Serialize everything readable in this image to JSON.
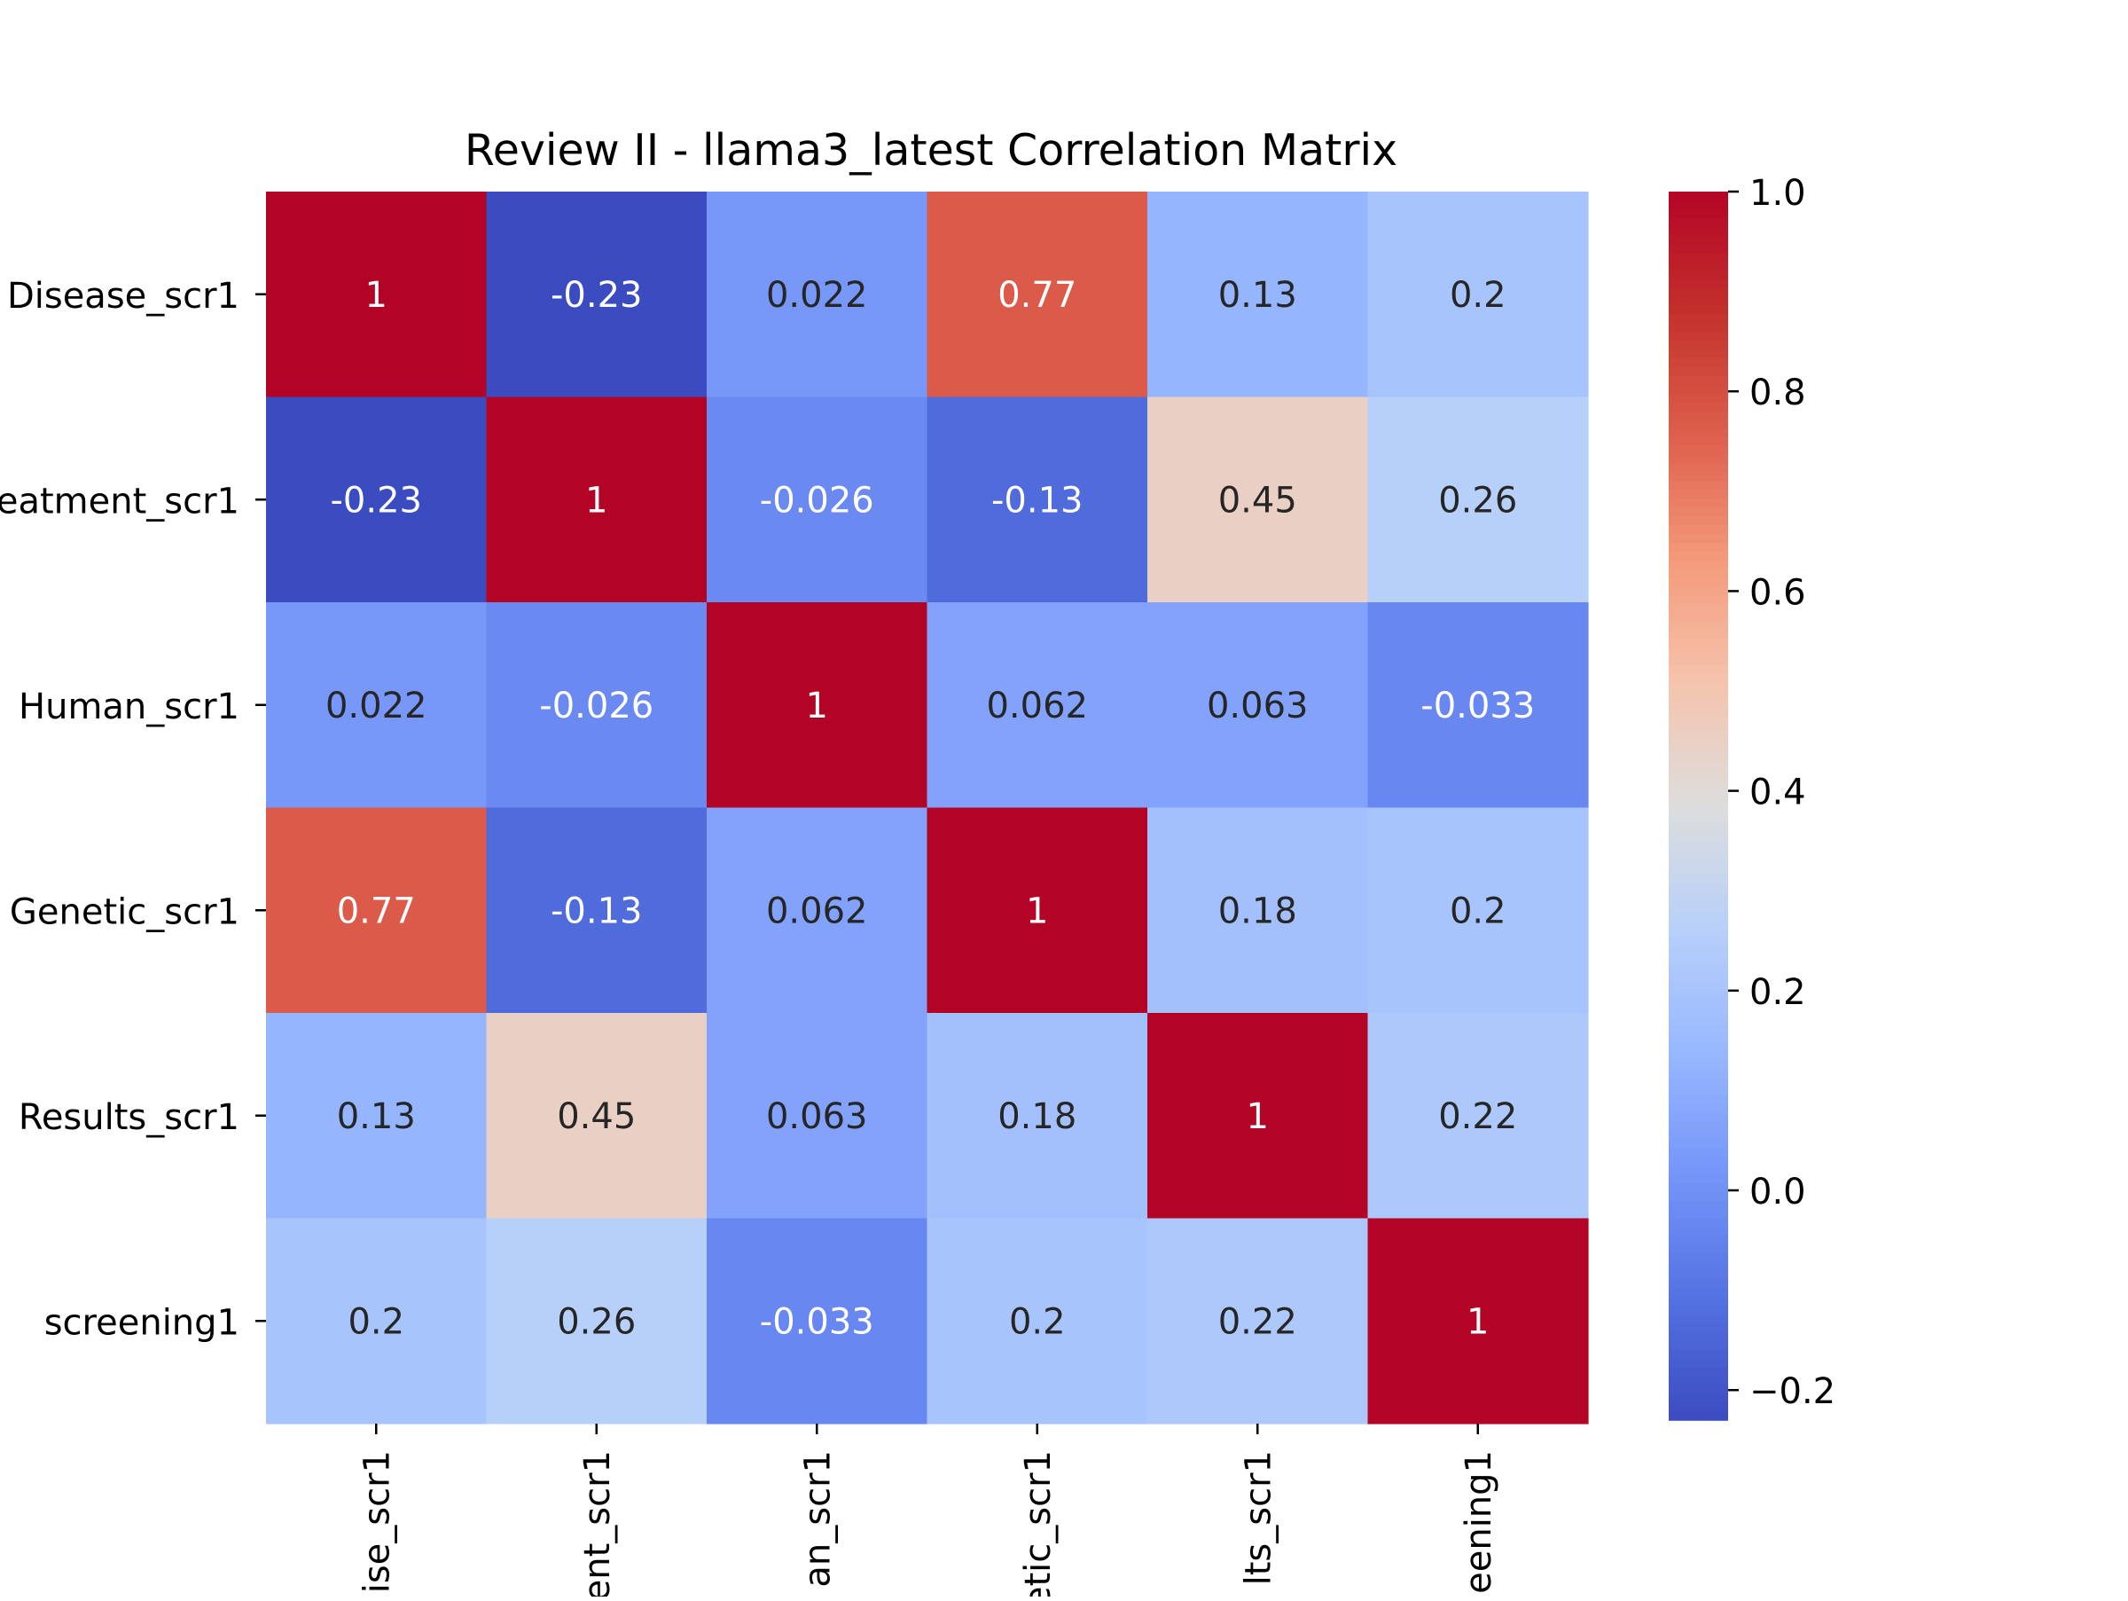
{
  "chart_data": {
    "type": "heatmap",
    "title": "Review II - llama3_latest Correlation Matrix",
    "row_labels": [
      "Disease_scr1",
      "eatment_scr1",
      "Human_scr1",
      "Genetic_scr1",
      "Results_scr1",
      "screening1"
    ],
    "col_labels": [
      "ise_scr1",
      "ent_scr1",
      "an_scr1",
      "etic_scr1",
      "lts_scr1",
      "eening1"
    ],
    "values": [
      [
        1,
        -0.23,
        0.022,
        0.77,
        0.13,
        0.2
      ],
      [
        -0.23,
        1,
        -0.026,
        -0.13,
        0.45,
        0.26
      ],
      [
        0.022,
        -0.026,
        1,
        0.062,
        0.063,
        -0.033
      ],
      [
        0.77,
        -0.13,
        0.062,
        1,
        0.18,
        0.2
      ],
      [
        0.13,
        0.45,
        0.063,
        0.18,
        1,
        0.22
      ],
      [
        0.2,
        0.26,
        -0.033,
        0.2,
        0.22,
        1
      ]
    ],
    "cell_labels": [
      [
        "1",
        "-0.23",
        "0.022",
        "0.77",
        "0.13",
        "0.2"
      ],
      [
        "-0.23",
        "1",
        "-0.026",
        "-0.13",
        "0.45",
        "0.26"
      ],
      [
        "0.022",
        "-0.026",
        "1",
        "0.062",
        "0.063",
        "-0.033"
      ],
      [
        "0.77",
        "-0.13",
        "0.062",
        "1",
        "0.18",
        "0.2"
      ],
      [
        "0.13",
        "0.45",
        "0.063",
        "0.18",
        "1",
        "0.22"
      ],
      [
        "0.2",
        "0.26",
        "-0.033",
        "0.2",
        "0.22",
        "1"
      ]
    ],
    "colormap": "coolwarm",
    "vmin": -0.23,
    "vmax": 1.0,
    "colorbar": {
      "ticks": [
        -0.2,
        0.0,
        0.2,
        0.4,
        0.6,
        0.8,
        1.0
      ],
      "tick_labels": [
        "−0.2",
        "0.0",
        "0.2",
        "0.4",
        "0.6",
        "0.8",
        "1.0"
      ]
    },
    "grid": false,
    "legend": "colorbar-right"
  }
}
